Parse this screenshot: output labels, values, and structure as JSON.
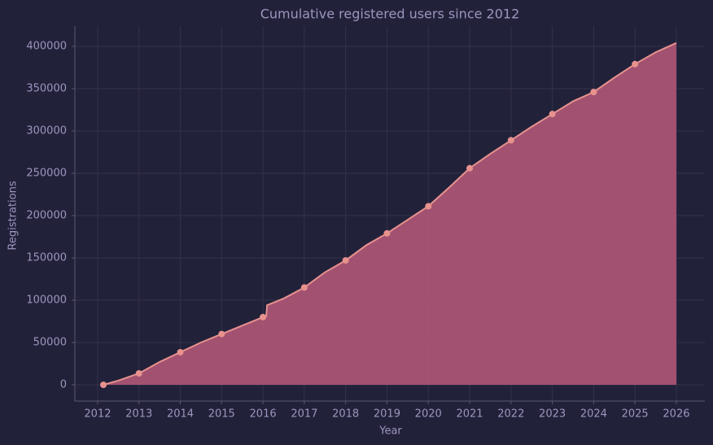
{
  "chart_data": {
    "type": "area",
    "title": "Cumulative registered users since 2012",
    "x_label": "Year",
    "y_label": "Registrations",
    "line": {
      "color": "#e8928e",
      "fill": "#b05877",
      "x": [
        2012.14,
        2012.5,
        2013,
        2013.5,
        2014,
        2014.5,
        2015,
        2015.5,
        2016,
        2016.08,
        2016.1,
        2016.5,
        2017,
        2017.5,
        2018,
        2018.5,
        2019,
        2019.5,
        2020,
        2020.5,
        2021,
        2021.5,
        2022,
        2022.5,
        2023,
        2023.5,
        2024,
        2024.5,
        2025,
        2025.5,
        2026
      ],
      "values": [
        0,
        5000,
        13500,
        27000,
        38500,
        50000,
        60000,
        70000,
        80000,
        81000,
        94000,
        102000,
        115000,
        133000,
        147000,
        165000,
        179000,
        195000,
        211000,
        233000,
        256000,
        273000,
        289000,
        305000,
        320000,
        335000,
        346000,
        363000,
        379000,
        393000,
        404000
      ]
    },
    "markers": {
      "color": "#e8928e",
      "x": [
        2012.14,
        2013,
        2014,
        2015,
        2016,
        2017,
        2018,
        2019,
        2020,
        2021,
        2022,
        2023,
        2024,
        2025
      ],
      "values": [
        0,
        13500,
        38500,
        60000,
        80000,
        115000,
        147000,
        179000,
        211000,
        256000,
        289000,
        320000,
        346000,
        379000
      ]
    },
    "xlim": [
      2011.45,
      2026.69
    ],
    "ylim": [
      -19230,
      424000
    ],
    "xticks": [
      2012,
      2013,
      2014,
      2015,
      2016,
      2017,
      2018,
      2019,
      2020,
      2021,
      2022,
      2023,
      2024,
      2025,
      2026
    ],
    "yticks": [
      0,
      50000,
      100000,
      150000,
      200000,
      250000,
      300000,
      350000,
      400000
    ],
    "grid": true
  }
}
